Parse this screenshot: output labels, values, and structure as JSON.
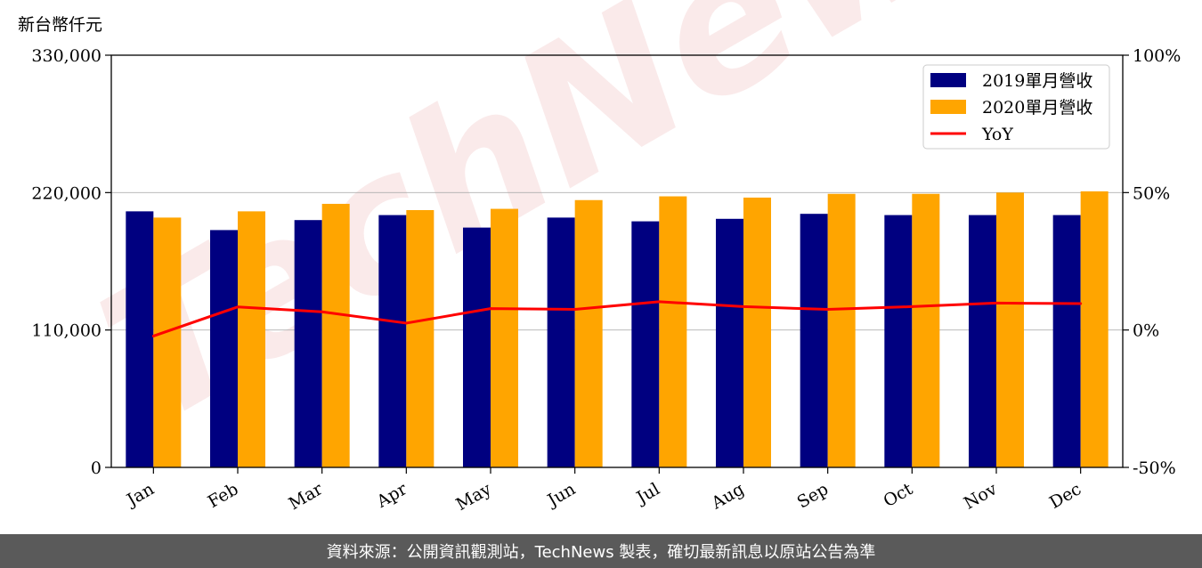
{
  "y_unit_label": "新台幣仟元",
  "watermark": "TechNews",
  "footer": {
    "source_text": "資料來源：公開資訊觀測站，TechNews 製表，確切最新訊息以原站公告為準"
  },
  "chart_data": {
    "type": "bar",
    "categories": [
      "Jan",
      "Feb",
      "Mar",
      "Apr",
      "May",
      "Jun",
      "Jul",
      "Aug",
      "Sep",
      "Oct",
      "Nov",
      "Dec"
    ],
    "series": [
      {
        "name": "2019單月營收",
        "type": "bar",
        "axis": "left",
        "color": "#000080",
        "values": [
          205000,
          190000,
          198000,
          202000,
          192000,
          200000,
          197000,
          199000,
          203000,
          202000,
          202000,
          202000
        ]
      },
      {
        "name": "2020單月營收",
        "type": "bar",
        "axis": "left",
        "color": "#FFA500",
        "values": [
          200000,
          205000,
          211000,
          206000,
          207000,
          214000,
          217000,
          216000,
          219000,
          219000,
          220000,
          221000
        ]
      },
      {
        "name": "YoY",
        "type": "line",
        "axis": "right",
        "color": "#FF0000",
        "values": [
          -2.2,
          8.4,
          6.6,
          2.5,
          7.8,
          7.5,
          10.3,
          8.5,
          7.5,
          8.5,
          9.8,
          9.6
        ]
      }
    ],
    "y_left": {
      "lim": [
        0,
        330000
      ],
      "ticks": [
        "0",
        "110,000",
        "220,000",
        "330,000"
      ],
      "tick_values": [
        0,
        110000,
        220000,
        330000
      ]
    },
    "y_right": {
      "lim": [
        -50,
        100
      ],
      "ticks": [
        "-50%",
        "0%",
        "50%",
        "100%"
      ],
      "tick_values": [
        -50,
        0,
        50,
        100
      ]
    },
    "grid": "horizontal",
    "legend_position": "top-right"
  }
}
